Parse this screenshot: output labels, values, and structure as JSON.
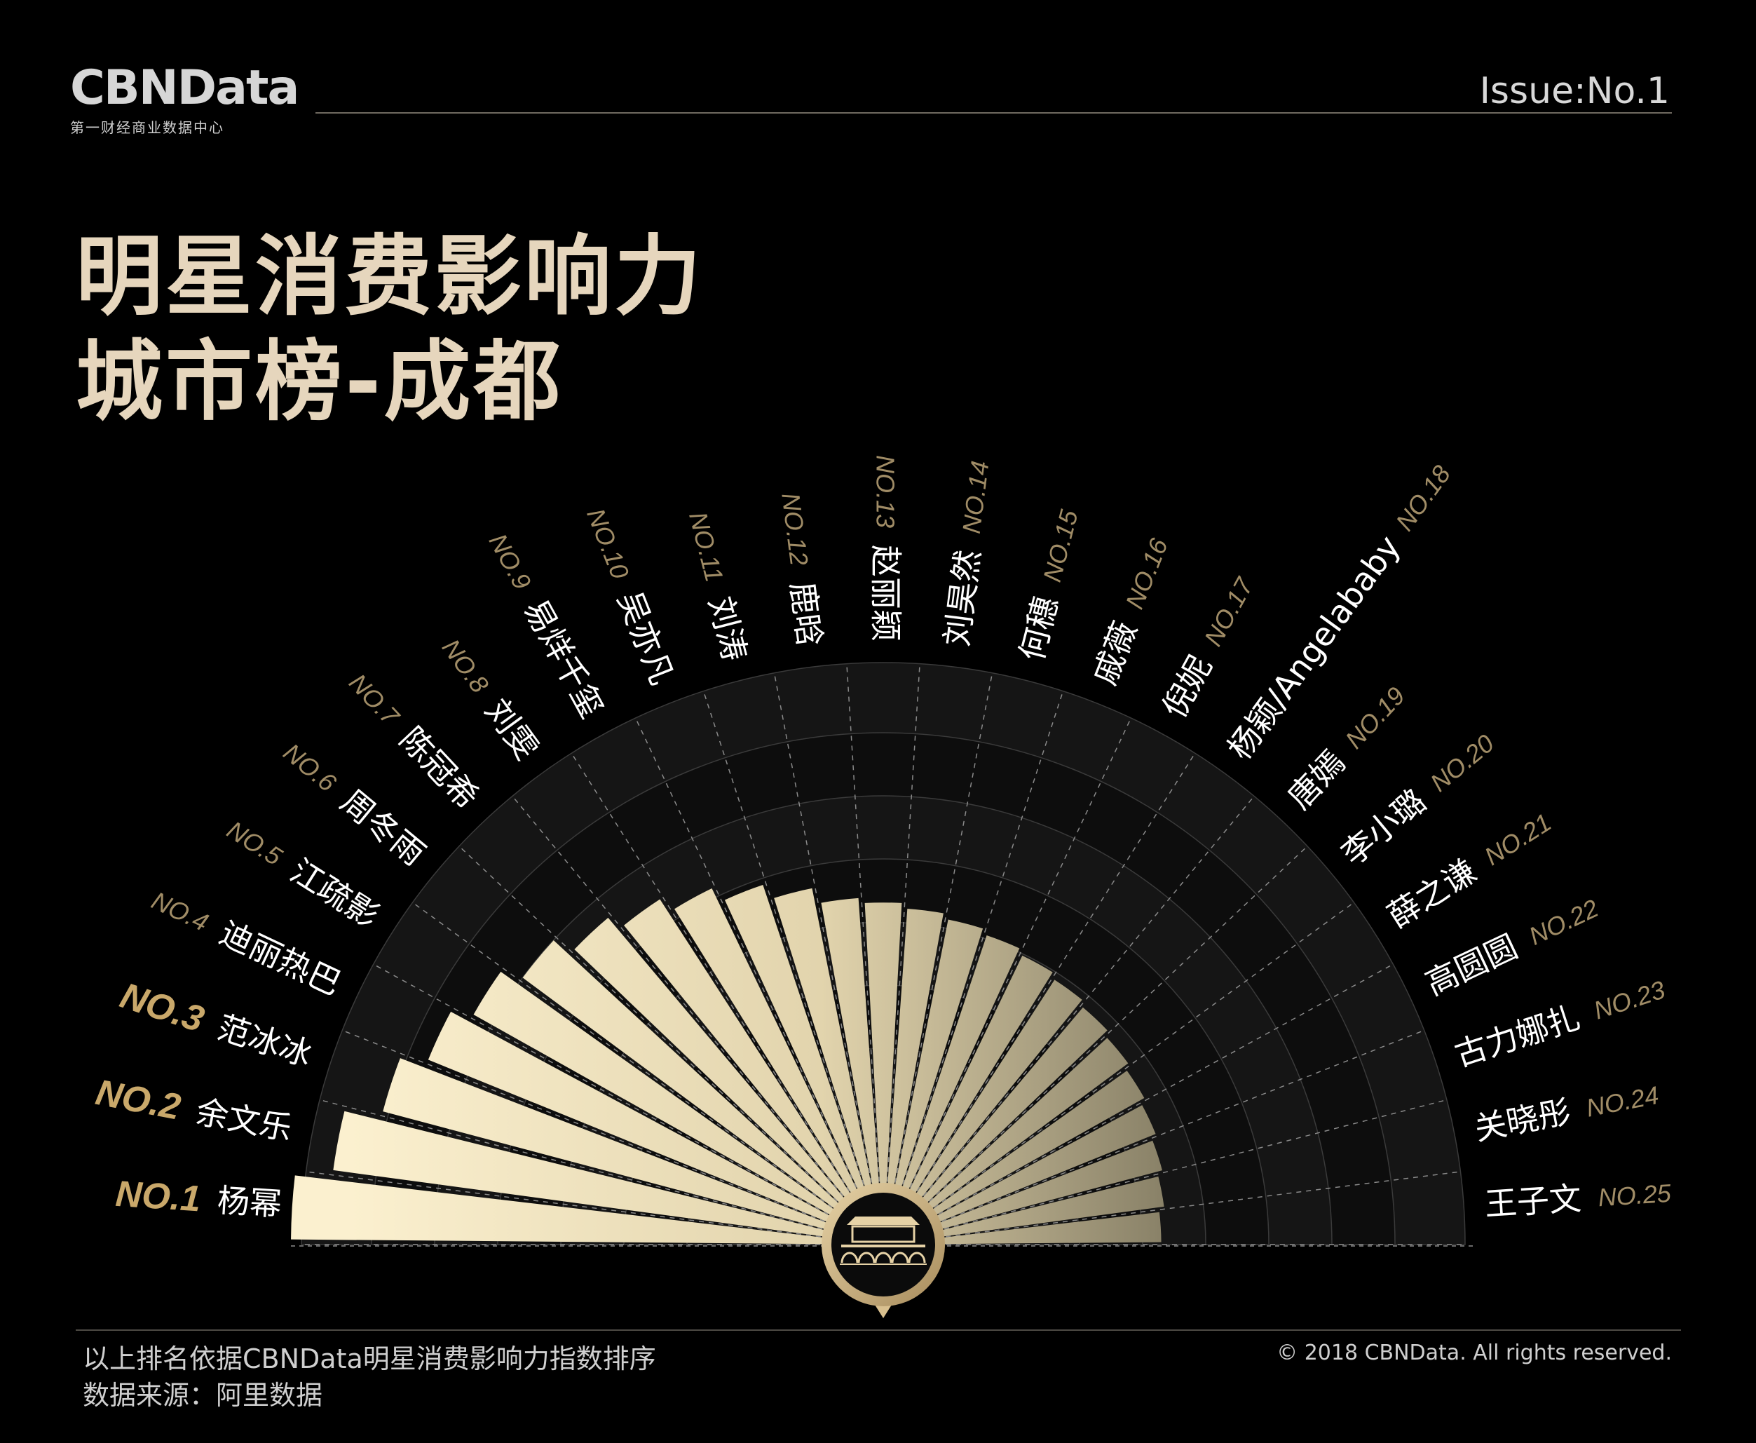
{
  "header": {
    "logo": "CBNData",
    "logo_subtitle": "第一财经商业数据中心",
    "issue": "Issue:No.1"
  },
  "title_line1": "明星消费影响力",
  "title_line2": "城市榜-成都",
  "footer": {
    "note": "以上排名依据CBNData明星消费影响力指数排序",
    "source": "数据来源：阿里数据",
    "copyright": "© 2018 CBNData. All rights reserved."
  },
  "colors": {
    "background": "#000000",
    "accent_gold": "#c9b184",
    "bar_light": "#f8ecc8",
    "bar_dark": "#8e8670",
    "ring_band_light": "#141414",
    "ring_band_dark": "#0c0c0c"
  },
  "chart_data": {
    "type": "bar",
    "layout": "radial-semicircle",
    "series": [
      {
        "values": [
          100,
          93,
          86,
          81,
          77,
          73,
          69,
          66,
          63,
          60,
          57,
          54,
          53,
          52,
          51,
          50,
          49,
          48,
          47,
          46,
          45,
          44,
          43,
          42,
          41
        ]
      }
    ],
    "categories": [
      {
        "rank": "NO.1",
        "name": "杨幂"
      },
      {
        "rank": "NO.2",
        "name": "余文乐"
      },
      {
        "rank": "NO.3",
        "name": "范冰冰"
      },
      {
        "rank": "NO.4",
        "name": "迪丽热巴"
      },
      {
        "rank": "NO.5",
        "name": "江疏影"
      },
      {
        "rank": "NO.6",
        "name": "周冬雨"
      },
      {
        "rank": "NO.7",
        "name": "陈冠希"
      },
      {
        "rank": "NO.8",
        "name": "刘雯"
      },
      {
        "rank": "NO.9",
        "name": "易烊千玺"
      },
      {
        "rank": "NO.10",
        "name": "吴亦凡"
      },
      {
        "rank": "NO.11",
        "name": "刘涛"
      },
      {
        "rank": "NO.12",
        "name": "鹿晗"
      },
      {
        "rank": "NO.13",
        "name": "赵丽颖"
      },
      {
        "rank": "NO.14",
        "name": "刘昊然"
      },
      {
        "rank": "NO.15",
        "name": "何穗"
      },
      {
        "rank": "NO.16",
        "name": "戚薇"
      },
      {
        "rank": "NO.17",
        "name": "倪妮"
      },
      {
        "rank": "NO.18",
        "name": "杨颖/Angelababy"
      },
      {
        "rank": "NO.19",
        "name": "唐嫣"
      },
      {
        "rank": "NO.20",
        "name": "李小璐"
      },
      {
        "rank": "NO.21",
        "name": "薛之谦"
      },
      {
        "rank": "NO.22",
        "name": "高圆圆"
      },
      {
        "rank": "NO.23",
        "name": "古力娜扎"
      },
      {
        "rank": "NO.24",
        "name": "关晓彤"
      },
      {
        "rank": "NO.25",
        "name": "王子文"
      }
    ],
    "value_note": "bar lengths estimated relative index (max = 100)"
  }
}
